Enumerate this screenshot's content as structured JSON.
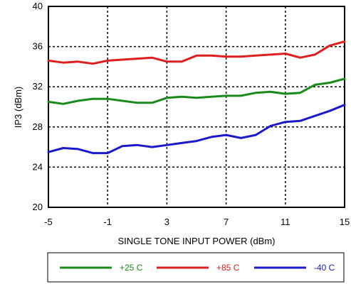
{
  "chart_data": {
    "type": "line",
    "title": "",
    "xlabel": "SINGLE TONE INPUT POWER (dBm)",
    "ylabel": "IP3 (dBm)",
    "xlim": [
      -5,
      15
    ],
    "ylim": [
      20,
      40
    ],
    "xticks": [
      -5,
      -1,
      3,
      7,
      11,
      15
    ],
    "yticks": [
      20,
      24,
      28,
      32,
      36,
      40
    ],
    "xtick_labels": [
      "-5",
      "-1",
      "3",
      "7",
      "11",
      "15"
    ],
    "ytick_labels": [
      "20",
      "24",
      "28",
      "32",
      "36",
      "40"
    ],
    "grid": true,
    "legend_position": "bottom",
    "x": [
      -5,
      -4,
      -3,
      -2,
      -1,
      0,
      1,
      2,
      3,
      4,
      5,
      6,
      7,
      8,
      9,
      10,
      11,
      12,
      13,
      14,
      15
    ],
    "series": [
      {
        "name": "+25 C",
        "color": "#1a8a1a",
        "values": [
          30.5,
          30.3,
          30.6,
          30.8,
          30.8,
          30.6,
          30.4,
          30.4,
          30.9,
          31.0,
          30.9,
          31.0,
          31.1,
          31.1,
          31.4,
          31.5,
          31.3,
          31.4,
          32.2,
          32.4,
          32.8
        ]
      },
      {
        "name": "+85 C",
        "color": "#dd1f1f",
        "values": [
          34.6,
          34.4,
          34.5,
          34.3,
          34.6,
          34.7,
          34.8,
          34.9,
          34.5,
          34.5,
          35.1,
          35.1,
          35.0,
          35.0,
          35.1,
          35.2,
          35.3,
          34.9,
          35.2,
          36.1,
          36.5
        ]
      },
      {
        "name": "-40 C",
        "color": "#1a1acc",
        "values": [
          25.5,
          25.9,
          25.8,
          25.4,
          25.4,
          26.1,
          26.2,
          26.0,
          26.2,
          26.4,
          26.6,
          27.0,
          27.2,
          26.9,
          27.2,
          28.1,
          28.5,
          28.6,
          29.1,
          29.6,
          30.2
        ]
      }
    ]
  }
}
